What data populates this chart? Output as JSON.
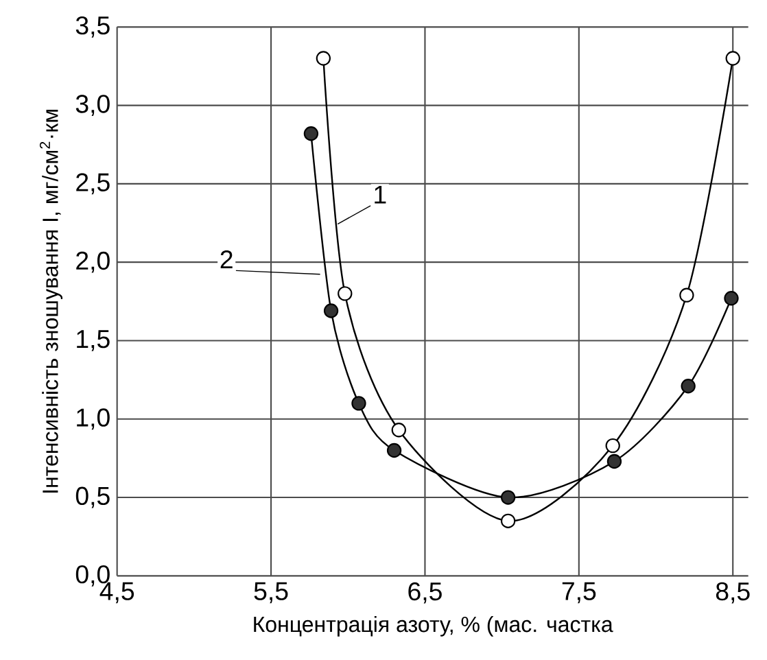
{
  "chart_data": {
    "type": "line",
    "xlabel": "Концентрація азоту, % (мас. частка",
    "ylabel": "Інтенсивність зношування I, мг/см$^{2}$·км",
    "xlim": [
      4.5,
      8.6
    ],
    "ylim": [
      0,
      3.5
    ],
    "xticks": [
      {
        "value": 4.5,
        "label": "4,5"
      },
      {
        "value": 5.5,
        "label": "5,5"
      },
      {
        "value": 6.5,
        "label": "6,5"
      },
      {
        "value": 7.5,
        "label": "7,5"
      },
      {
        "value": 8.5,
        "label": "8,5"
      }
    ],
    "yticks": [
      {
        "value": 0,
        "label": "0,0"
      },
      {
        "value": 0.5,
        "label": "0,5"
      },
      {
        "value": 1,
        "label": "1,0"
      },
      {
        "value": 1.5,
        "label": "1,5"
      },
      {
        "value": 2,
        "label": "2,0"
      },
      {
        "value": 2.5,
        "label": "2,5"
      },
      {
        "value": 3,
        "label": "3,0"
      },
      {
        "value": 3.5,
        "label": "3,5"
      }
    ],
    "grid": true,
    "marker": "circle",
    "series": [
      {
        "name": "1",
        "color": "#ffffff",
        "x": [
          5.84,
          5.98,
          6.33,
          7.04,
          7.72,
          8.2,
          8.5
        ],
        "values": [
          3.3,
          1.8,
          0.93,
          0.35,
          0.83,
          1.79,
          3.3
        ]
      },
      {
        "name": "2",
        "color": "#333333",
        "x": [
          5.76,
          5.89,
          6.07,
          6.3,
          7.04,
          7.73,
          8.21,
          8.49
        ],
        "values": [
          2.82,
          1.69,
          1.1,
          0.8,
          0.5,
          0.73,
          1.21,
          1.77
        ]
      }
    ]
  }
}
